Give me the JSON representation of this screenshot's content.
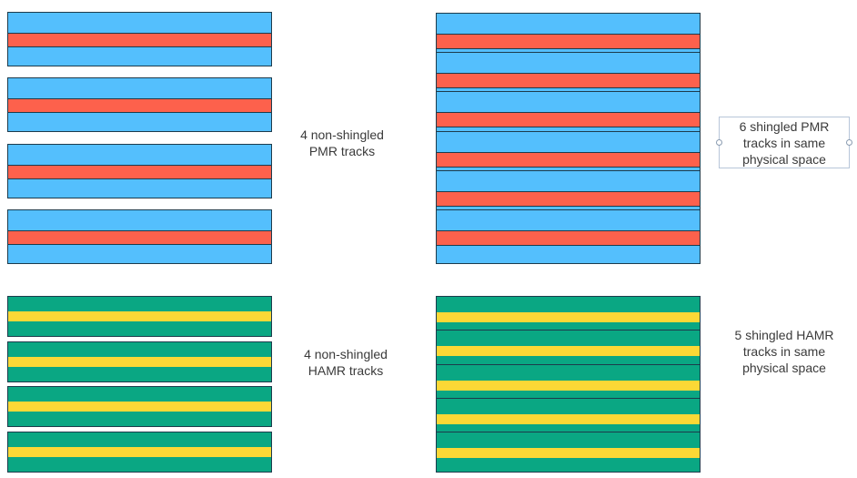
{
  "colors": {
    "pmr_outer": "#54bffd",
    "pmr_core": "#fd614c",
    "hamr_outer": "#0aa783",
    "hamr_core": "#fcd836",
    "border": "#1d3b4c"
  },
  "labels": {
    "pmr_nonshingled": [
      "4 non-shingled",
      "PMR tracks"
    ],
    "pmr_shingled": [
      "6 shingled PMR",
      "tracks in same",
      "physical space"
    ],
    "hamr_nonshingled": [
      "4 non-shingled",
      "HAMR tracks"
    ],
    "hamr_shingled": [
      "5 shingled HAMR",
      "tracks in same",
      "physical space"
    ]
  },
  "groups": {
    "pmr_nonshingled": {
      "track_count": 4,
      "shingled": false
    },
    "pmr_shingled": {
      "track_count": 6,
      "shingled": true
    },
    "hamr_nonshingled": {
      "track_count": 4,
      "shingled": false
    },
    "hamr_shingled": {
      "track_count": 5,
      "shingled": true
    }
  }
}
